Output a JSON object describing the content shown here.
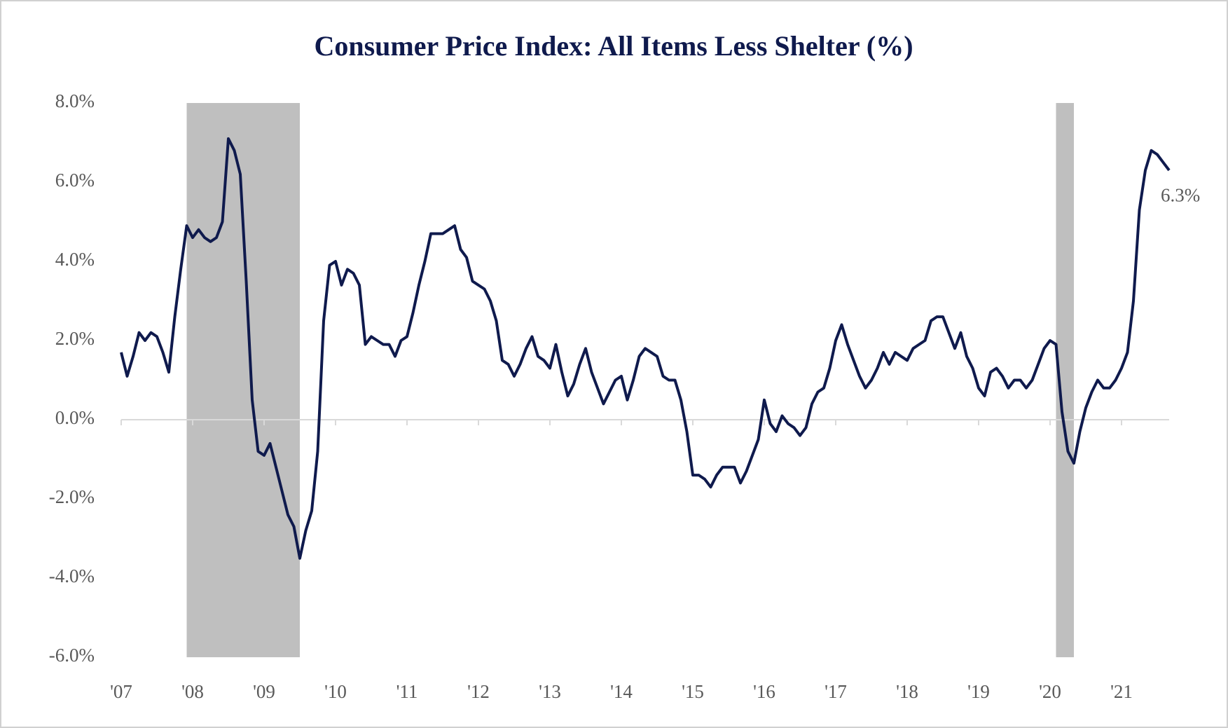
{
  "chart_data": {
    "type": "line",
    "title": "Consumer Price Index: All Items Less Shelter (%)",
    "categories": [
      "'07",
      null,
      null,
      null,
      null,
      null,
      null,
      null,
      null,
      null,
      null,
      null,
      "'08",
      null,
      null,
      null,
      null,
      null,
      null,
      null,
      null,
      null,
      null,
      null,
      "'09",
      null,
      null,
      null,
      null,
      null,
      null,
      null,
      null,
      null,
      null,
      null,
      "'10",
      null,
      null,
      null,
      null,
      null,
      null,
      null,
      null,
      null,
      null,
      null,
      "'11",
      null,
      null,
      null,
      null,
      null,
      null,
      null,
      null,
      null,
      null,
      null,
      "'12",
      null,
      null,
      null,
      null,
      null,
      null,
      null,
      null,
      null,
      null,
      null,
      "'13",
      null,
      null,
      null,
      null,
      null,
      null,
      null,
      null,
      null,
      null,
      null,
      "'14",
      null,
      null,
      null,
      null,
      null,
      null,
      null,
      null,
      null,
      null,
      null,
      "'15",
      null,
      null,
      null,
      null,
      null,
      null,
      null,
      null,
      null,
      null,
      null,
      "'16",
      null,
      null,
      null,
      null,
      null,
      null,
      null,
      null,
      null,
      null,
      null,
      "'17",
      null,
      null,
      null,
      null,
      null,
      null,
      null,
      null,
      null,
      null,
      null,
      "'18",
      null,
      null,
      null,
      null,
      null,
      null,
      null,
      null,
      null,
      null,
      null,
      "'19",
      null,
      null,
      null,
      null,
      null,
      null,
      null,
      null,
      null,
      null,
      null,
      "'20",
      null,
      null,
      null,
      null,
      null,
      null,
      null,
      null,
      null,
      null,
      null,
      "'21",
      null,
      null,
      null,
      null,
      null,
      null,
      null,
      null
    ],
    "series": [
      {
        "color": "#0f1a4d",
        "values": [
          1.7,
          1.1,
          1.6,
          2.2,
          2.0,
          2.2,
          2.1,
          1.7,
          1.2,
          2.6,
          3.8,
          4.9,
          4.6,
          4.8,
          4.6,
          4.5,
          4.6,
          5.0,
          7.1,
          6.8,
          6.2,
          3.5,
          0.5,
          -0.8,
          -0.9,
          -0.6,
          -1.2,
          -1.8,
          -2.4,
          -2.7,
          -3.5,
          -2.8,
          -2.3,
          -0.8,
          2.5,
          3.9,
          4.0,
          3.4,
          3.8,
          3.7,
          3.4,
          1.9,
          2.1,
          2.0,
          1.9,
          1.9,
          1.6,
          2.0,
          2.1,
          2.7,
          3.4,
          4.0,
          4.7,
          4.7,
          4.7,
          4.8,
          4.9,
          4.3,
          4.1,
          3.5,
          3.4,
          3.3,
          3.0,
          2.5,
          1.5,
          1.4,
          1.1,
          1.4,
          1.8,
          2.1,
          1.6,
          1.5,
          1.3,
          1.9,
          1.2,
          0.6,
          0.9,
          1.4,
          1.8,
          1.2,
          0.8,
          0.4,
          0.7,
          1.0,
          1.1,
          0.5,
          1.0,
          1.6,
          1.8,
          1.7,
          1.6,
          1.1,
          1.0,
          1.0,
          0.5,
          -0.3,
          -1.4,
          -1.4,
          -1.5,
          -1.7,
          -1.4,
          -1.2,
          -1.2,
          -1.2,
          -1.6,
          -1.3,
          -0.9,
          -0.5,
          0.5,
          -0.1,
          -0.3,
          0.1,
          -0.1,
          -0.2,
          -0.4,
          -0.2,
          0.4,
          0.7,
          0.8,
          1.3,
          2.0,
          2.4,
          1.9,
          1.5,
          1.1,
          0.8,
          1.0,
          1.3,
          1.7,
          1.4,
          1.7,
          1.6,
          1.5,
          1.8,
          1.9,
          2.0,
          2.5,
          2.6,
          2.6,
          2.2,
          1.8,
          2.2,
          1.6,
          1.3,
          0.8,
          0.6,
          1.2,
          1.3,
          1.1,
          0.8,
          1.0,
          1.0,
          0.8,
          1.0,
          1.4,
          1.8,
          2.0,
          1.9,
          0.2,
          -0.8,
          -1.1,
          -0.3,
          0.3,
          0.7,
          1.0,
          0.8,
          0.8,
          1.0,
          1.3,
          1.7,
          3.0,
          5.3,
          6.3,
          6.8,
          6.7,
          6.5,
          6.3
        ],
        "value_labels": [
          null,
          null,
          null,
          null,
          null,
          null,
          null,
          null,
          null,
          null,
          null,
          null,
          null,
          null,
          null,
          null,
          null,
          null,
          null,
          null,
          null,
          null,
          null,
          null,
          null,
          null,
          null,
          null,
          null,
          null,
          null,
          null,
          null,
          null,
          null,
          null,
          null,
          null,
          null,
          null,
          null,
          null,
          null,
          null,
          null,
          null,
          null,
          null,
          null,
          null,
          null,
          null,
          null,
          null,
          null,
          null,
          null,
          null,
          null,
          null,
          null,
          null,
          null,
          null,
          null,
          null,
          null,
          null,
          null,
          null,
          null,
          null,
          null,
          null,
          null,
          null,
          null,
          null,
          null,
          null,
          null,
          null,
          null,
          null,
          null,
          null,
          null,
          null,
          null,
          null,
          null,
          null,
          null,
          null,
          null,
          null,
          null,
          null,
          null,
          null,
          null,
          null,
          null,
          null,
          null,
          null,
          null,
          null,
          null,
          null,
          null,
          null,
          null,
          null,
          null,
          null,
          null,
          null,
          null,
          null,
          null,
          null,
          null,
          null,
          null,
          null,
          null,
          null,
          null,
          null,
          null,
          null,
          null,
          null,
          null,
          null,
          null,
          null,
          null,
          null,
          null,
          null,
          null,
          null,
          null,
          null,
          null,
          null,
          null,
          null,
          null,
          null,
          null,
          null,
          null,
          null,
          null,
          null,
          null,
          null,
          null,
          null,
          null,
          null,
          null,
          null,
          null,
          null,
          null,
          null,
          null,
          null,
          null,
          null,
          null,
          null,
          "6.3%"
        ]
      }
    ],
    "recessions": [
      {
        "start": 11,
        "end": 30
      },
      {
        "start": 157,
        "end": 160
      }
    ],
    "recession_color": "#bfbfbf",
    "ylim": [
      -6,
      8
    ],
    "yticks": [
      {
        "value": -6,
        "label": "-6.0%"
      },
      {
        "value": -4,
        "label": "-4.0%"
      },
      {
        "value": -2,
        "label": "-2.0%"
      },
      {
        "value": 0,
        "label": "0.0%"
      },
      {
        "value": 2,
        "label": "2.0%"
      },
      {
        "value": 4,
        "label": "4.0%"
      },
      {
        "value": 6,
        "label": "6.0%"
      },
      {
        "value": 8,
        "label": "8.0%"
      }
    ],
    "grid": false
  }
}
